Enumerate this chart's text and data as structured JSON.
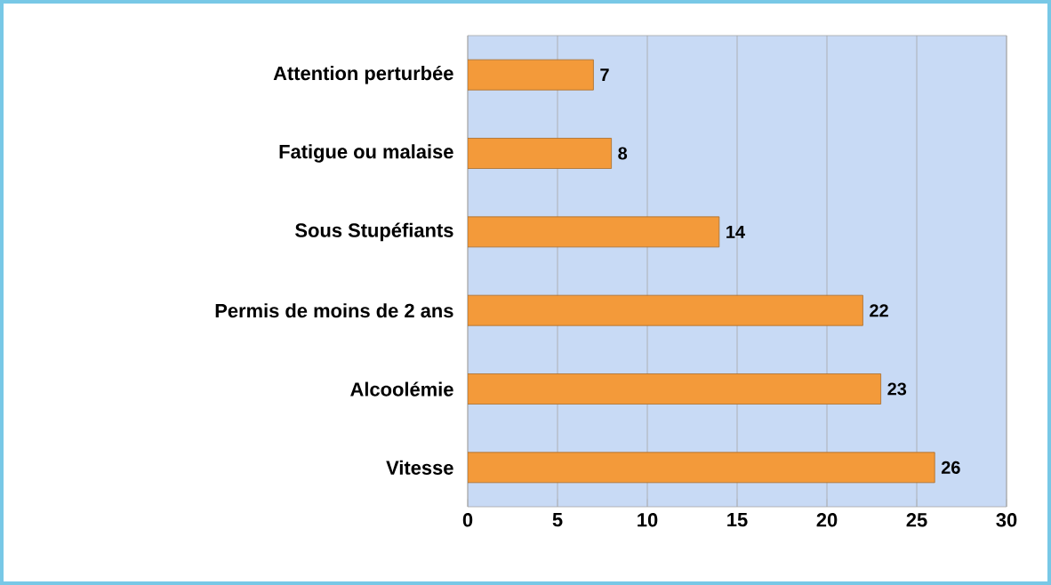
{
  "chart_data": {
    "type": "bar",
    "orientation": "horizontal",
    "categories": [
      "Attention perturbée",
      "Fatigue ou malaise",
      "Sous Stupéfiants",
      "Permis de moins de 2 ans",
      "Alcoolémie",
      "Vitesse"
    ],
    "values": [
      7,
      8,
      14,
      22,
      23,
      26
    ],
    "color": "#f39a3a",
    "xlim": [
      0,
      30
    ],
    "xticks": [
      0,
      5,
      10,
      15,
      20,
      25,
      30
    ],
    "grid": "x",
    "data_labels": true
  }
}
